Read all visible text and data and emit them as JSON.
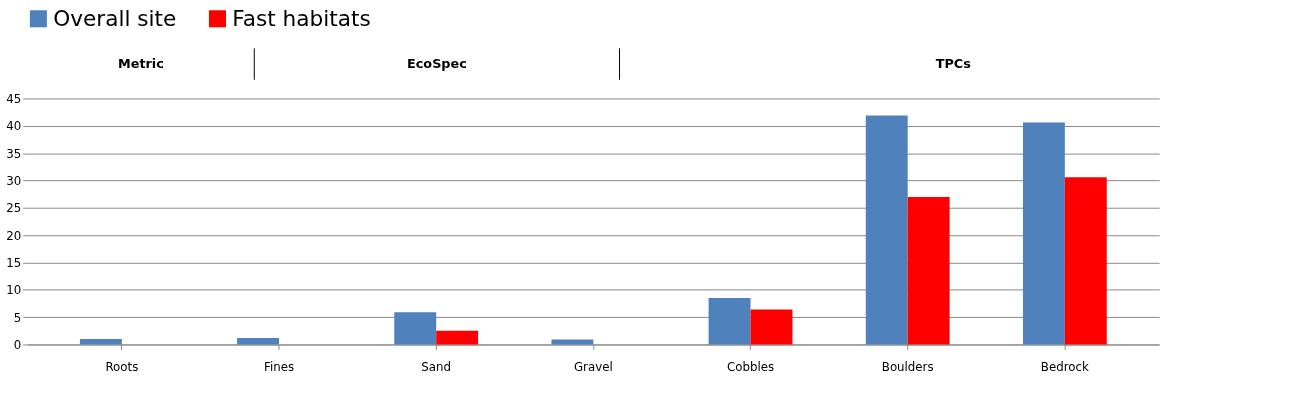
{
  "chart_data": {
    "type": "bar",
    "annotations": [
      "Metric",
      "EcoSpec",
      "TPCs"
    ],
    "categories": [
      "Roots",
      "Fines",
      "Sand",
      "Gravel",
      "Cobbles",
      "Boulders",
      "Bedrock"
    ],
    "series": [
      {
        "name": "Overall site",
        "color": "#4f81bd",
        "values": [
          1.0,
          1.2,
          5.9,
          0.9,
          8.5,
          41.9,
          40.6
        ]
      },
      {
        "name": "Fast habitats",
        "color": "#ff0000",
        "values": [
          0,
          0,
          2.5,
          0,
          6.4,
          27.0,
          30.6
        ]
      }
    ],
    "ylim": [
      0,
      45
    ],
    "yticks": [
      0,
      5,
      10,
      15,
      20,
      25,
      30,
      35,
      40,
      45
    ],
    "grid": "y",
    "legend": "top"
  }
}
